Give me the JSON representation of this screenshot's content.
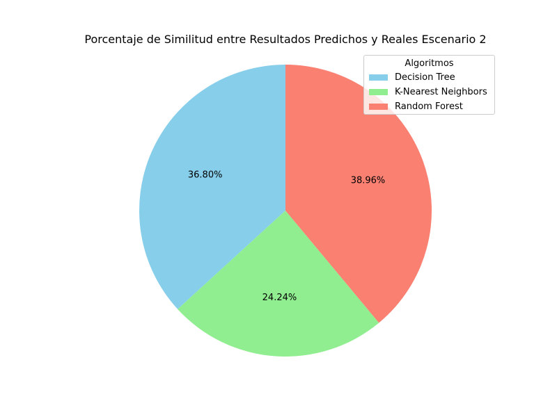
{
  "chart_data": {
    "type": "pie",
    "title": "Porcentaje de Similitud entre Resultados Predichos y Reales Escenario 2",
    "categories": [
      "Decision Tree",
      "K-Nearest Neighbors",
      "Random Forest"
    ],
    "values": [
      36.8,
      24.24,
      38.96
    ],
    "labels": [
      "36.80%",
      "24.24%",
      "38.96%"
    ],
    "colors": [
      "#87ceeb",
      "#90ee90",
      "#fa8072"
    ],
    "start_angle": 90,
    "direction": "counterclockwise",
    "legend": {
      "title": "Algoritmos",
      "placement": "upper-right"
    }
  }
}
